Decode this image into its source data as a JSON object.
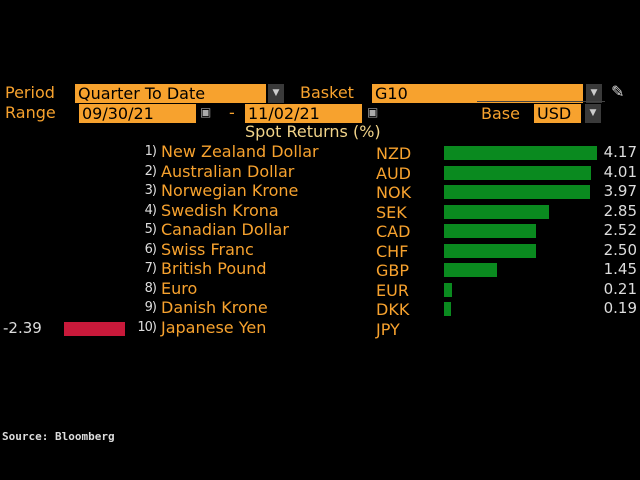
{
  "controls": {
    "period_label": "Period",
    "period_value": "Quarter To Date",
    "basket_label": "Basket",
    "basket_value": "G10",
    "range_label": "Range",
    "range_start": "09/30/21",
    "range_separator": "-",
    "range_end": "11/02/21",
    "base_label": "Base",
    "base_value": "USD"
  },
  "chart_data": {
    "type": "bar",
    "title": "Spot Returns (%)",
    "orientation": "horizontal",
    "items": [
      {
        "rank": "1)",
        "name": "New Zealand Dollar",
        "code": "NZD",
        "value": 4.17
      },
      {
        "rank": "2)",
        "name": "Australian Dollar",
        "code": "AUD",
        "value": 4.01
      },
      {
        "rank": "3)",
        "name": "Norwegian Krone",
        "code": "NOK",
        "value": 3.97
      },
      {
        "rank": "4)",
        "name": "Swedish Krona",
        "code": "SEK",
        "value": 2.85
      },
      {
        "rank": "5)",
        "name": "Canadian Dollar",
        "code": "CAD",
        "value": 2.52
      },
      {
        "rank": "6)",
        "name": "Swiss Franc",
        "code": "CHF",
        "value": 2.5
      },
      {
        "rank": "7)",
        "name": "British Pound",
        "code": "GBP",
        "value": 1.45
      },
      {
        "rank": "8)",
        "name": "Euro",
        "code": "EUR",
        "value": 0.21
      },
      {
        "rank": "9)",
        "name": "Danish Krone",
        "code": "DKK",
        "value": 0.19
      },
      {
        "rank": "10)",
        "name": "Japanese Yen",
        "code": "JPY",
        "value": -2.39
      }
    ],
    "positive_color": "#0a8a1f",
    "negative_color": "#c8193a"
  },
  "source": "Source: Bloomberg"
}
